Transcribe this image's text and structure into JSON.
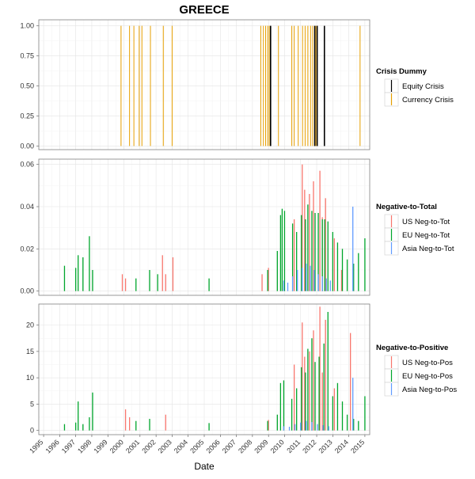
{
  "chart_data": {
    "title": "GREECE",
    "xlabel": "Date",
    "x_tick_labels": [
      "1995",
      "1996",
      "1997",
      "1998",
      "1999",
      "2000",
      "2001",
      "2002",
      "2003",
      "2004",
      "2005",
      "2006",
      "2007",
      "2008",
      "2009",
      "2010",
      "2011",
      "2012",
      "2013",
      "2014",
      "2015"
    ],
    "xlim": [
      1994.7,
      2015.3
    ],
    "grid": true,
    "panels": [
      {
        "type": "bar",
        "legend_title": "Crisis Dummy",
        "ylim": [
          -0.03,
          1.05
        ],
        "y_ticks": [
          "0.00",
          "0.25",
          "0.50",
          "0.75",
          "1.00"
        ],
        "series": [
          {
            "name": "Equity Crisis",
            "color": "#000000",
            "x": [
              2009.13,
              2011.88,
              2012.03,
              2012.48
            ],
            "values": [
              1,
              1,
              1,
              1
            ]
          },
          {
            "name": "Currency Crisis",
            "color": "#E69F00",
            "x": [
              1999.82,
              2000.35,
              2000.62,
              2000.95,
              2001.12,
              2001.65,
              2002.45,
              2003.0,
              2008.52,
              2008.68,
              2008.82,
              2008.95,
              2009.05,
              2009.62,
              2010.45,
              2010.6,
              2010.85,
              2011.12,
              2011.28,
              2011.45,
              2011.62,
              2011.75,
              2011.95,
              2014.7
            ],
            "values": [
              1,
              1,
              1,
              1,
              1,
              1,
              1,
              1,
              1,
              1,
              1,
              1,
              1,
              1,
              1,
              1,
              1,
              1,
              1,
              1,
              1,
              1,
              1,
              1
            ]
          }
        ]
      },
      {
        "type": "bar",
        "legend_title": "Negative-to-Total",
        "ylim": [
          -0.002,
          0.0625
        ],
        "y_ticks": [
          "0.00",
          "0.02",
          "0.04",
          "0.06"
        ],
        "series": [
          {
            "name": "US Neg-to-Tot",
            "color": "#F8766D",
            "x": [
              1999.9,
              2000.1,
              2002.4,
              2002.6,
              2003.05,
              2008.6,
              2009.0,
              2010.6,
              2011.1,
              2011.25,
              2011.55,
              2011.8,
              2012.2,
              2012.35,
              2012.55,
              2013.1,
              2013.55
            ],
            "values": [
              0.008,
              0.006,
              0.017,
              0.008,
              0.016,
              0.008,
              0.011,
              0.034,
              0.06,
              0.048,
              0.046,
              0.052,
              0.057,
              0.035,
              0.044,
              0.025,
              0.01
            ]
          },
          {
            "name": "EU Neg-to-Tot",
            "color": "#00A62C",
            "x": [
              1996.3,
              1997.0,
              1997.15,
              1997.45,
              1997.85,
              1998.05,
              2000.75,
              2001.6,
              2002.1,
              2005.3,
              2008.95,
              2009.55,
              2009.75,
              2009.85,
              2010.0,
              2010.5,
              2010.75,
              2011.05,
              2011.3,
              2011.45,
              2011.7,
              2011.9,
              2012.1,
              2012.35,
              2012.5,
              2012.7,
              2013.0,
              2013.3,
              2013.6,
              2013.9,
              2014.3,
              2014.6,
              2015.0
            ],
            "values": [
              0.012,
              0.011,
              0.017,
              0.016,
              0.026,
              0.01,
              0.006,
              0.01,
              0.008,
              0.006,
              0.01,
              0.019,
              0.036,
              0.039,
              0.038,
              0.032,
              0.028,
              0.036,
              0.034,
              0.041,
              0.038,
              0.037,
              0.037,
              0.034,
              0.034,
              0.033,
              0.028,
              0.023,
              0.02,
              0.015,
              0.013,
              0.018,
              0.025
            ]
          },
          {
            "name": "Asia Neg-to-Tot",
            "color": "#619CFF",
            "x": [
              2009.95,
              2010.2,
              2010.5,
              2010.8,
              2011.1,
              2011.35,
              2011.6,
              2011.85,
              2012.1,
              2012.35,
              2012.6,
              2012.85,
              2014.25
            ],
            "values": [
              0.005,
              0.004,
              0.007,
              0.01,
              0.011,
              0.013,
              0.012,
              0.01,
              0.008,
              0.007,
              0.006,
              0.005,
              0.04
            ]
          }
        ]
      },
      {
        "type": "bar",
        "legend_title": "Negative-to-Positive",
        "ylim": [
          -0.8,
          24.0
        ],
        "y_ticks": [
          "0",
          "5",
          "10",
          "15",
          "20"
        ],
        "series": [
          {
            "name": "US Neg-to-Pos",
            "color": "#F8766D",
            "x": [
              2000.1,
              2000.35,
              2002.6,
              2009.0,
              2010.6,
              2011.1,
              2011.25,
              2011.55,
              2011.8,
              2012.2,
              2012.35,
              2012.55,
              2013.1,
              2014.1
            ],
            "values": [
              4.0,
              2.5,
              3.0,
              2.0,
              12.5,
              20.5,
              14.0,
              15.0,
              19.0,
              23.5,
              11.0,
              21.0,
              8.0,
              18.5
            ]
          },
          {
            "name": "EU Neg-to-Pos",
            "color": "#00A62C",
            "x": [
              1996.3,
              1997.0,
              1997.15,
              1997.45,
              1997.85,
              1998.05,
              2000.75,
              2001.6,
              2005.3,
              2008.95,
              2009.55,
              2009.75,
              2009.95,
              2010.45,
              2010.75,
              2011.05,
              2011.3,
              2011.45,
              2011.7,
              2011.9,
              2012.15,
              2012.45,
              2012.7,
              2013.0,
              2013.3,
              2013.6,
              2013.9,
              2014.3,
              2014.6,
              2015.0
            ],
            "values": [
              1.2,
              1.5,
              5.5,
              1.2,
              2.5,
              7.2,
              1.8,
              2.2,
              1.4,
              1.8,
              3.0,
              9.0,
              9.5,
              6.0,
              8.0,
              12.0,
              11.0,
              15.5,
              17.5,
              13.0,
              14.0,
              16.5,
              22.5,
              6.5,
              9.0,
              5.5,
              3.0,
              2.2,
              1.8,
              6.5
            ]
          },
          {
            "name": "Asia Neg-to-Pos",
            "color": "#619CFF",
            "x": [
              2009.95,
              2010.3,
              2010.65,
              2011.0,
              2011.35,
              2011.7,
              2012.05,
              2012.4,
              2012.75,
              2014.25
            ],
            "values": [
              0.8,
              0.7,
              1.2,
              1.5,
              1.8,
              1.6,
              1.2,
              1.0,
              0.8,
              10.0
            ]
          }
        ]
      }
    ]
  }
}
